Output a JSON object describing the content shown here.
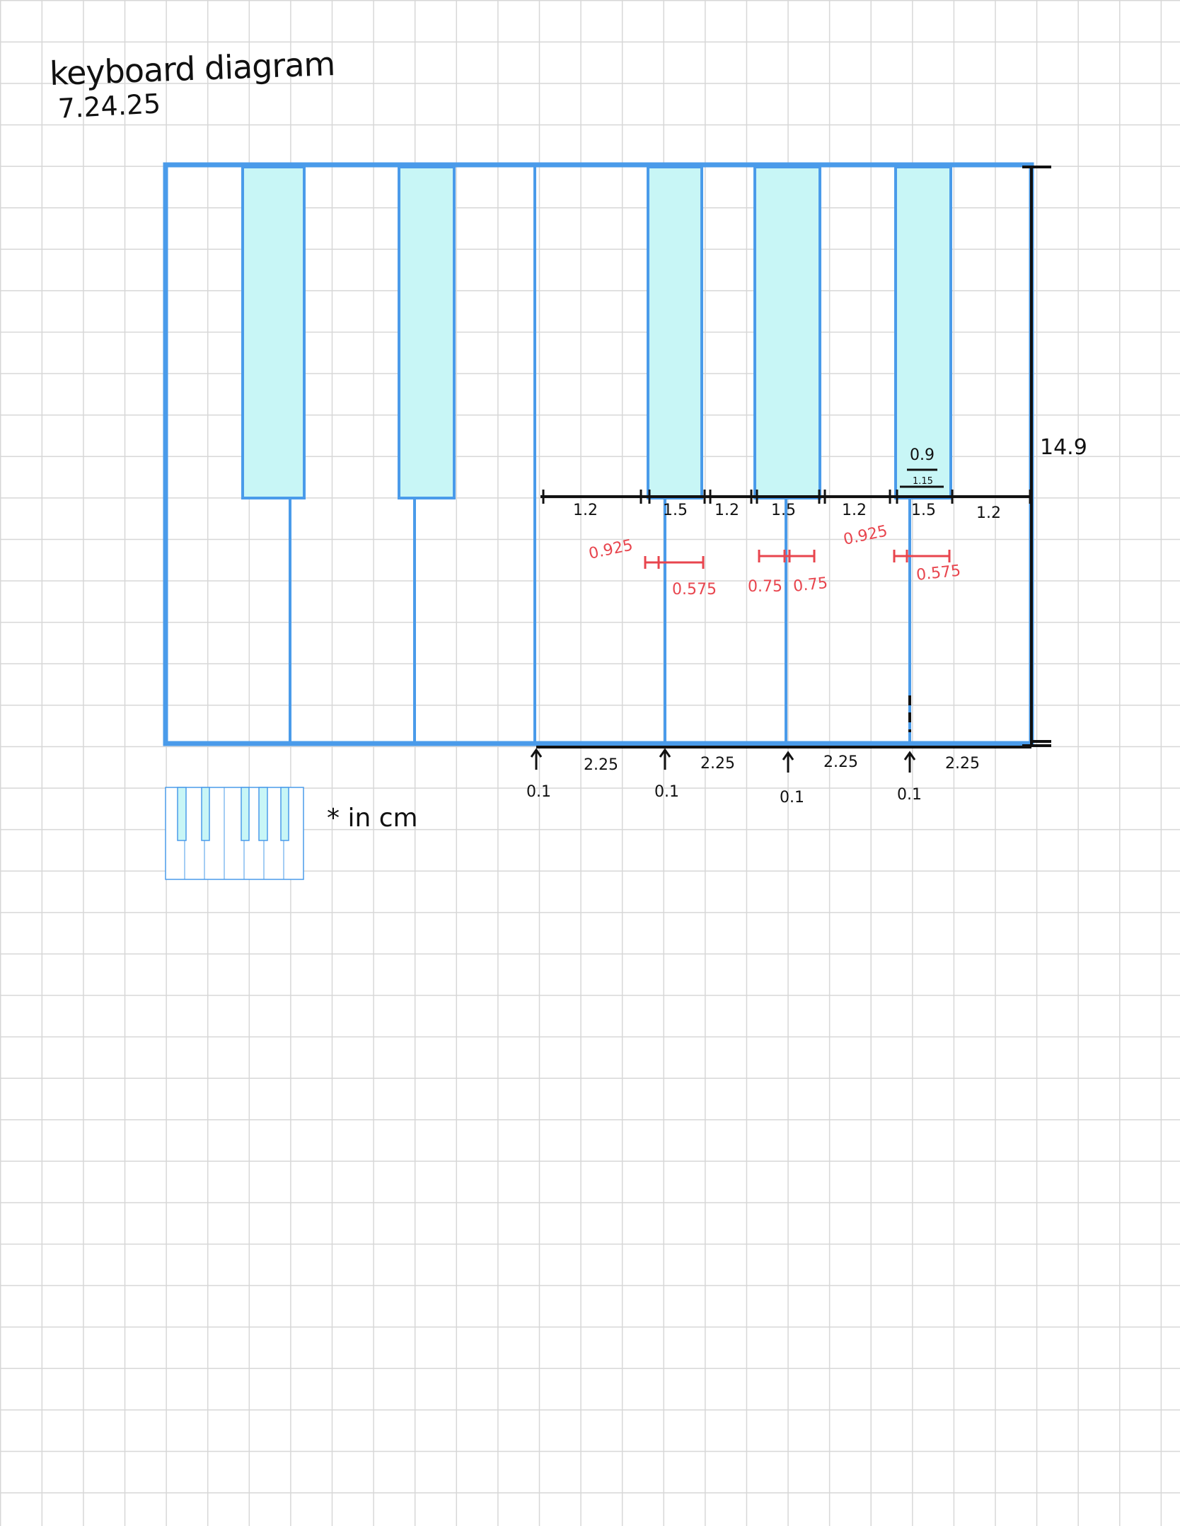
{
  "notes": {
    "title": "keyboard diagram",
    "date": "7.24.25",
    "units": "* in cm"
  },
  "colors": {
    "outline_blue": "#4a9bea",
    "black_key_fill": "#c8f6f6",
    "annotation_red": "#e8454e",
    "ink_black": "#111111",
    "grid": "#d7d7d7"
  },
  "dimensions": {
    "height": "14.9",
    "top_row": [
      "1.2",
      "1.5",
      "1.2",
      "1.5",
      "1.2",
      "1.5",
      "1.2"
    ],
    "bottom_row": [
      "2.25",
      "2.25",
      "2.25",
      "2.25"
    ],
    "gaps": [
      "0.1",
      "0.1",
      "0.1",
      "0.1"
    ],
    "detail_outer": "0.9",
    "detail_inner": "1.15",
    "red": {
      "d1": "0.925",
      "d2": "0.575",
      "d3": "0.75",
      "d4": "0.75",
      "d5": "0.925",
      "d6": "0.575"
    }
  }
}
